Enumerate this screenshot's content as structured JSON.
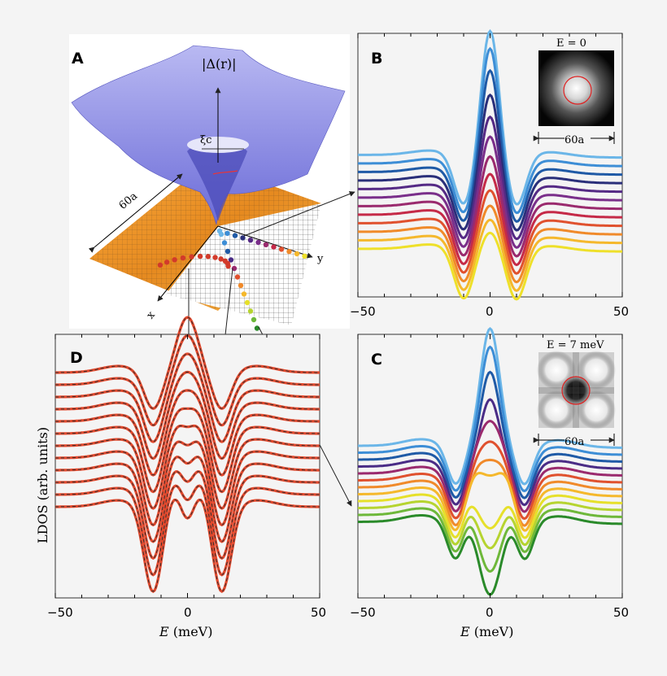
{
  "figure": {
    "panel_labels": {
      "a": "A",
      "b": "B",
      "c": "C",
      "d": "D"
    },
    "panel_a": {
      "z_label": "|Δ(r)|",
      "xi_label": "ξc",
      "scale_label": "60a",
      "x_axis_label": "x",
      "y_axis_label": "y"
    },
    "inset_b": {
      "title": "E = 0",
      "scale_label": "60a"
    },
    "inset_c": {
      "title": "E = 7 meV",
      "scale_label": "60a"
    },
    "ylabel_d": "LDOS (arb. units)",
    "xlabel_prefix": "E",
    "xlabel_unit": " (meV)",
    "colors": {
      "background": "#f4f4f4",
      "surface": "#8d8de6",
      "orange": "#f0962a",
      "d_curve": "#e2482c",
      "d_dash": "#333333",
      "circle": "#e02020"
    }
  },
  "chart_data": [
    {
      "panel": "B",
      "type": "line",
      "xlabel": "",
      "ylabel": "",
      "xlim": [
        -50,
        50
      ],
      "xticks": [
        -50,
        0,
        50
      ],
      "x_tick_labels": [
        "−50",
        "0",
        "50"
      ],
      "description_of_series": "LDOS spectra at sites approaching the vortex core; single central peak at E = 0",
      "series": [
        {
          "name": "s1",
          "color": "#6bb6e8",
          "peak": 1.0,
          "dip": 0.42,
          "baseline": 0.58
        },
        {
          "name": "s2",
          "color": "#3d8ed6",
          "peak": 0.92,
          "dip": 0.4,
          "baseline": 0.55
        },
        {
          "name": "s3",
          "color": "#1f5aa6",
          "peak": 0.8,
          "dip": 0.38,
          "baseline": 0.52
        },
        {
          "name": "s4",
          "color": "#2a2f7a",
          "peak": 0.66,
          "dip": 0.36,
          "baseline": 0.49
        },
        {
          "name": "s5",
          "color": "#552a85",
          "peak": 0.54,
          "dip": 0.34,
          "baseline": 0.46
        },
        {
          "name": "s6",
          "color": "#7a2f8a",
          "peak": 0.44,
          "dip": 0.32,
          "baseline": 0.43
        },
        {
          "name": "s7",
          "color": "#9a2a6e",
          "peak": 0.34,
          "dip": 0.3,
          "baseline": 0.4
        },
        {
          "name": "s8",
          "color": "#c52a48",
          "peak": 0.26,
          "dip": 0.28,
          "baseline": 0.37
        },
        {
          "name": "s9",
          "color": "#e0512e",
          "peak": 0.19,
          "dip": 0.26,
          "baseline": 0.34
        },
        {
          "name": "s10",
          "color": "#f08a2a",
          "peak": 0.13,
          "dip": 0.24,
          "baseline": 0.31
        },
        {
          "name": "s11",
          "color": "#f5b82c",
          "peak": 0.08,
          "dip": 0.22,
          "baseline": 0.28
        },
        {
          "name": "s12",
          "color": "#eee02a",
          "peak": 0.04,
          "dip": 0.2,
          "baseline": 0.25
        }
      ]
    },
    {
      "panel": "C",
      "type": "line",
      "xlabel": "E (meV)",
      "xlim": [
        -50,
        50
      ],
      "xticks": [
        -50,
        0,
        50
      ],
      "x_tick_labels": [
        "−50",
        "0",
        "50"
      ],
      "description_of_series": "LDOS spectra along the diagonal path; central peak splits and a dip develops",
      "series": [
        {
          "name": "c1",
          "color": "#6bb6e8",
          "peak": 1.0
        },
        {
          "name": "c2",
          "color": "#3d8ed6",
          "peak": 0.9
        },
        {
          "name": "c3",
          "color": "#1f5aa6",
          "peak": 0.74
        },
        {
          "name": "c4",
          "color": "#4a2c86",
          "peak": 0.56
        },
        {
          "name": "c5",
          "color": "#9a2a6e",
          "peak": 0.4
        },
        {
          "name": "c6",
          "color": "#e0512e",
          "peak": 0.28
        },
        {
          "name": "c7",
          "color": "#f08a2a",
          "peak": 0.18
        },
        {
          "name": "c8",
          "color": "#f5b82c",
          "peak": 0.1
        },
        {
          "name": "c9",
          "color": "#e6e02a",
          "peak": 0.04
        },
        {
          "name": "c10",
          "color": "#b6d430",
          "peak": 0.0
        },
        {
          "name": "c11",
          "color": "#6eb83a",
          "peak": -0.05
        },
        {
          "name": "c12",
          "color": "#2a8a2a",
          "peak": -0.1
        }
      ]
    },
    {
      "panel": "D",
      "type": "line",
      "xlabel": "E (meV)",
      "ylabel": "LDOS (arb. units)",
      "xlim": [
        -50,
        50
      ],
      "xticks": [
        -50,
        0,
        50
      ],
      "x_tick_labels": [
        "−50",
        "0",
        "50"
      ],
      "series_count": 12,
      "style": "solid red model fits with dashed black data"
    }
  ]
}
